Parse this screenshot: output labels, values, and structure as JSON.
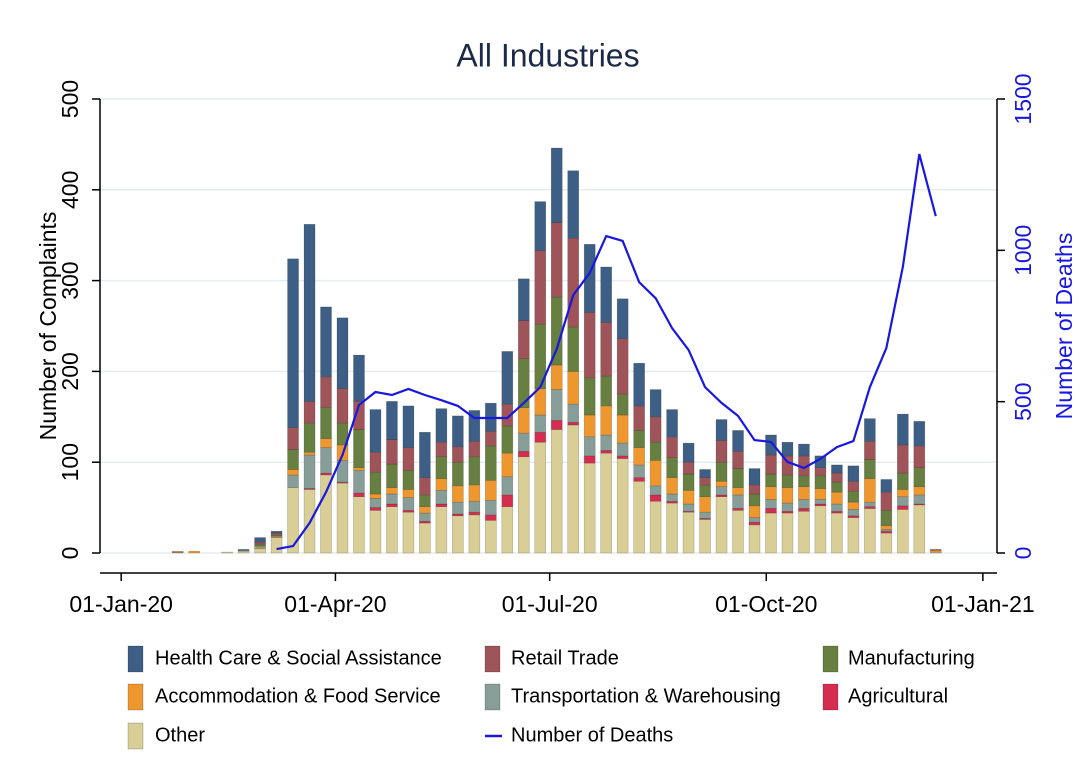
{
  "chart_data": {
    "type": "stacked-bar-line",
    "title": "All Industries",
    "ylabel": "Number of Complaints",
    "y2label": "Number of Deaths",
    "x": [
      "2020-01-25",
      "2020-02-01",
      "2020-02-15",
      "2020-02-22",
      "2020-02-29",
      "2020-03-07",
      "2020-03-14",
      "2020-03-21",
      "2020-03-28",
      "2020-04-04",
      "2020-04-11",
      "2020-04-18",
      "2020-04-25",
      "2020-05-02",
      "2020-05-09",
      "2020-05-16",
      "2020-05-23",
      "2020-05-30",
      "2020-06-06",
      "2020-06-13",
      "2020-06-20",
      "2020-06-27",
      "2020-07-04",
      "2020-07-11",
      "2020-07-18",
      "2020-07-25",
      "2020-08-01",
      "2020-08-08",
      "2020-08-15",
      "2020-08-22",
      "2020-08-29",
      "2020-09-05",
      "2020-09-12",
      "2020-09-19",
      "2020-09-26",
      "2020-10-03",
      "2020-10-10",
      "2020-10-17",
      "2020-10-24",
      "2020-10-31",
      "2020-11-07",
      "2020-11-14",
      "2020-11-21",
      "2020-11-28",
      "2020-12-05",
      "2020-12-12"
    ],
    "xlim": [
      "2019-12-23",
      "2021-01-07"
    ],
    "xticks": [
      {
        "value": "2020-01-01",
        "label": "01-Jan-20"
      },
      {
        "value": "2020-04-01",
        "label": "01-Apr-20"
      },
      {
        "value": "2020-07-01",
        "label": "01-Jul-20"
      },
      {
        "value": "2020-10-01",
        "label": "01-Oct-20"
      },
      {
        "value": "2021-01-01",
        "label": "01-Jan-21"
      }
    ],
    "ylim": [
      0,
      500
    ],
    "yticks": [
      0,
      100,
      200,
      300,
      400,
      500
    ],
    "y2lim": [
      0,
      1500
    ],
    "y2ticks": [
      0,
      500,
      1000,
      1500
    ],
    "grid": true,
    "series": [
      {
        "name": "Health Care & Social Assistance",
        "color": "#3d5f85",
        "values": [
          0,
          0,
          0,
          1,
          5,
          2,
          186,
          195,
          77,
          78,
          51,
          47,
          42,
          46,
          50,
          37,
          34,
          34,
          31,
          58,
          46,
          54,
          82,
          74,
          75,
          61,
          44,
          47,
          30,
          30,
          21,
          9,
          23,
          23,
          18,
          22,
          15,
          13,
          13,
          9,
          17,
          25,
          14,
          34,
          27,
          0
        ]
      },
      {
        "name": "Retail Trade",
        "color": "#9e5459",
        "values": [
          0,
          0,
          0,
          0,
          2,
          2,
          24,
          24,
          34,
          38,
          31,
          22,
          27,
          25,
          19,
          16,
          17,
          17,
          16,
          24,
          42,
          81,
          82,
          98,
          72,
          59,
          61,
          27,
          28,
          23,
          13,
          8,
          24,
          19,
          10,
          21,
          21,
          22,
          9,
          10,
          11,
          20,
          20,
          31,
          24,
          1
        ]
      },
      {
        "name": "Manufacturing",
        "color": "#677f40",
        "values": [
          0,
          0,
          0,
          0,
          2,
          1,
          22,
          32,
          34,
          24,
          42,
          24,
          26,
          21,
          13,
          24,
          26,
          31,
          38,
          30,
          54,
          71,
          75,
          49,
          41,
          33,
          23,
          19,
          20,
          22,
          18,
          13,
          21,
          21,
          13,
          14,
          14,
          12,
          14,
          11,
          12,
          21,
          17,
          18,
          21,
          0
        ]
      },
      {
        "name": "Accommodation & Food Service",
        "color": "#ef972f",
        "values": [
          1,
          2,
          0,
          0,
          1,
          1,
          6,
          3,
          10,
          17,
          3,
          5,
          7,
          9,
          7,
          13,
          18,
          18,
          22,
          26,
          28,
          29,
          27,
          36,
          24,
          32,
          31,
          19,
          28,
          18,
          15,
          17,
          6,
          8,
          13,
          14,
          17,
          14,
          12,
          13,
          8,
          26,
          4,
          8,
          9,
          2
        ]
      },
      {
        "name": "Transportation & Warehousing",
        "color": "#879e98",
        "values": [
          1,
          0,
          0,
          1,
          2,
          1,
          14,
          37,
          28,
          24,
          25,
          10,
          11,
          14,
          9,
          15,
          13,
          12,
          16,
          20,
          20,
          19,
          34,
          20,
          21,
          17,
          14,
          14,
          10,
          8,
          8,
          7,
          9,
          15,
          5,
          10,
          9,
          10,
          5,
          8,
          7,
          5,
          2,
          10,
          10,
          0
        ]
      },
      {
        "name": "Agricultural",
        "color": "#d52d50",
        "values": [
          0,
          0,
          0,
          0,
          0,
          0,
          0,
          1,
          2,
          1,
          4,
          3,
          3,
          2,
          2,
          3,
          2,
          3,
          6,
          13,
          6,
          11,
          10,
          3,
          8,
          3,
          3,
          4,
          7,
          2,
          1,
          1,
          2,
          2,
          3,
          5,
          2,
          3,
          2,
          2,
          2,
          2,
          2,
          4,
          1,
          0
        ]
      },
      {
        "name": "Other",
        "color": "#d8ce96",
        "values": [
          0,
          0,
          1,
          2,
          5,
          17,
          72,
          70,
          86,
          77,
          62,
          47,
          51,
          45,
          33,
          51,
          41,
          42,
          36,
          51,
          106,
          122,
          136,
          141,
          99,
          110,
          104,
          79,
          57,
          55,
          45,
          37,
          62,
          47,
          31,
          44,
          44,
          46,
          52,
          44,
          39,
          49,
          22,
          48,
          53,
          1
        ]
      },
      {
        "name": "Number of Deaths",
        "color": "#1818e0",
        "type": "line",
        "axis": "y2",
        "values": [
          null,
          null,
          null,
          null,
          null,
          13,
          23,
          99,
          201,
          324,
          489,
          532,
          522,
          542,
          522,
          505,
          486,
          446,
          446,
          446,
          496,
          548,
          674,
          852,
          925,
          1047,
          1031,
          895,
          842,
          743,
          671,
          548,
          496,
          453,
          373,
          367,
          301,
          281,
          311,
          350,
          370,
          548,
          677,
          945,
          1318,
          1113
        ]
      }
    ]
  }
}
